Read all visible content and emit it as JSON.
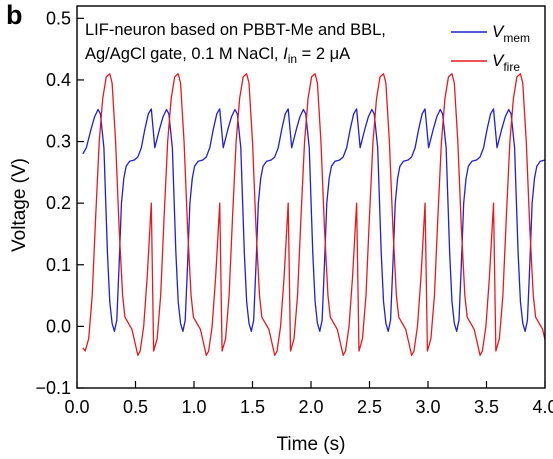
{
  "panel_label": "b",
  "chart_data": {
    "type": "line",
    "annotation": {
      "line1": "LIF-neuron based on PBBT-Me and BBL,",
      "line2_prefix": "Ag/AgCl gate, 0.1 M NaCl, ",
      "line2_var": "I",
      "line2_sub": "in",
      "line2_suffix": " = 2 μA"
    },
    "xlabel": "Time (s)",
    "ylabel": "Voltage (V)",
    "xlim": [
      0.0,
      4.0
    ],
    "ylim": [
      -0.1,
      0.52
    ],
    "xticks": [
      0.0,
      0.5,
      1.0,
      1.5,
      2.0,
      2.5,
      3.0,
      3.5,
      4.0
    ],
    "xtick_labels": [
      "0.0",
      "0.5",
      "1.0",
      "1.5",
      "2.0",
      "2.5",
      "3.0",
      "3.5",
      "4.0"
    ],
    "yticks": [
      -0.1,
      0.0,
      0.1,
      0.2,
      0.3,
      0.4,
      0.5
    ],
    "ytick_labels": [
      "−0.1",
      "0.0",
      "0.1",
      "0.2",
      "0.3",
      "0.4",
      "0.5"
    ],
    "grid": false,
    "legend_position": "top-right",
    "period_s": 0.585,
    "series": [
      {
        "legend_var": "V",
        "legend_sub": "mem",
        "color": "#1f1fd6",
        "start_time_s": 0.05,
        "cycle": [
          [
            0.0,
            0.28
          ],
          [
            0.03,
            0.29
          ],
          [
            0.07,
            0.32
          ],
          [
            0.1,
            0.34
          ],
          [
            0.13,
            0.352
          ],
          [
            0.15,
            0.345
          ],
          [
            0.18,
            0.29
          ],
          [
            0.21,
            0.12
          ],
          [
            0.23,
            0.04
          ],
          [
            0.25,
            0.005
          ],
          [
            0.27,
            -0.008
          ],
          [
            0.29,
            0.01
          ],
          [
            0.31,
            0.1
          ],
          [
            0.33,
            0.2
          ],
          [
            0.35,
            0.24
          ],
          [
            0.37,
            0.26
          ],
          [
            0.4,
            0.268
          ],
          [
            0.44,
            0.27
          ],
          [
            0.47,
            0.275
          ],
          [
            0.5,
            0.29
          ],
          [
            0.53,
            0.32
          ],
          [
            0.56,
            0.345
          ],
          [
            0.585,
            0.353
          ]
        ]
      },
      {
        "legend_var": "V",
        "legend_sub": "fire",
        "color": "#e8191e",
        "start_time_s": 0.05,
        "cycle": [
          [
            0.0,
            -0.035
          ],
          [
            0.02,
            -0.04
          ],
          [
            0.05,
            -0.02
          ],
          [
            0.08,
            0.05
          ],
          [
            0.11,
            0.18
          ],
          [
            0.14,
            0.3
          ],
          [
            0.17,
            0.37
          ],
          [
            0.2,
            0.405
          ],
          [
            0.23,
            0.41
          ],
          [
            0.25,
            0.395
          ],
          [
            0.28,
            0.3
          ],
          [
            0.31,
            0.16
          ],
          [
            0.34,
            0.05
          ],
          [
            0.36,
            0.015
          ],
          [
            0.39,
            0.005
          ],
          [
            0.42,
            -0.005
          ],
          [
            0.45,
            -0.03
          ],
          [
            0.47,
            -0.047
          ],
          [
            0.49,
            -0.04
          ],
          [
            0.52,
            0.0
          ],
          [
            0.55,
            0.08
          ],
          [
            0.585,
            0.2
          ]
        ]
      }
    ]
  }
}
